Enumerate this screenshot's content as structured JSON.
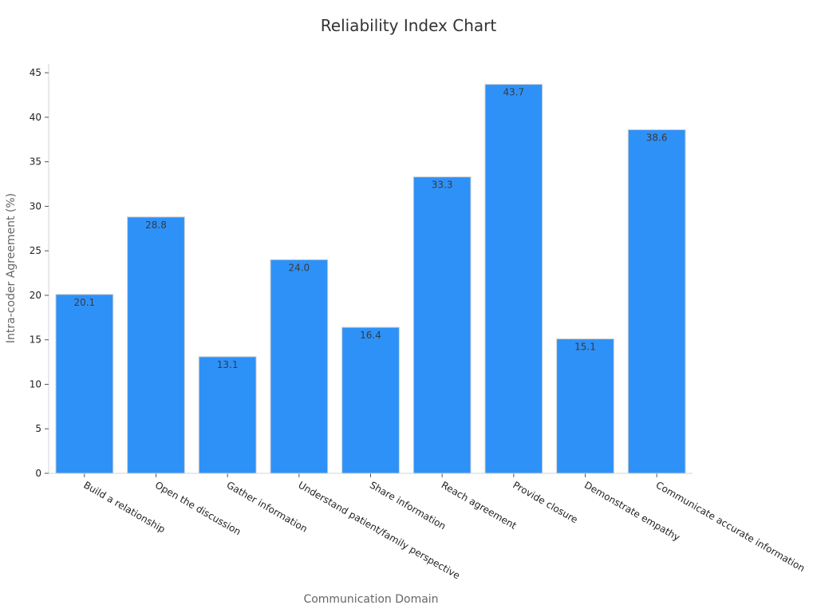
{
  "chart_data": {
    "type": "bar",
    "title": "Reliability Index Chart",
    "xlabel": "Communication Domain",
    "ylabel": "Intra-coder Agreement (%)",
    "categories": [
      "Build a relationship",
      "Open the discussion",
      "Gather information",
      "Understand patient/family perspective",
      "Share information",
      "Reach agreement",
      "Provide closure",
      "Demonstrate empathy",
      "Communicate accurate information"
    ],
    "values": [
      20.1,
      28.8,
      13.1,
      24.0,
      16.4,
      33.3,
      43.7,
      15.1,
      38.6
    ],
    "value_labels": [
      "20.1",
      "28.8",
      "13.1",
      "24.0",
      "16.4",
      "33.3",
      "43.7",
      "15.1",
      "38.6"
    ],
    "ylim": [
      0,
      46
    ],
    "yticks": [
      0,
      5,
      10,
      15,
      20,
      25,
      30,
      35,
      40,
      45
    ],
    "grid": false,
    "bar_color": "#2e91f8",
    "bar_edge_color": "#d0d0d0"
  }
}
